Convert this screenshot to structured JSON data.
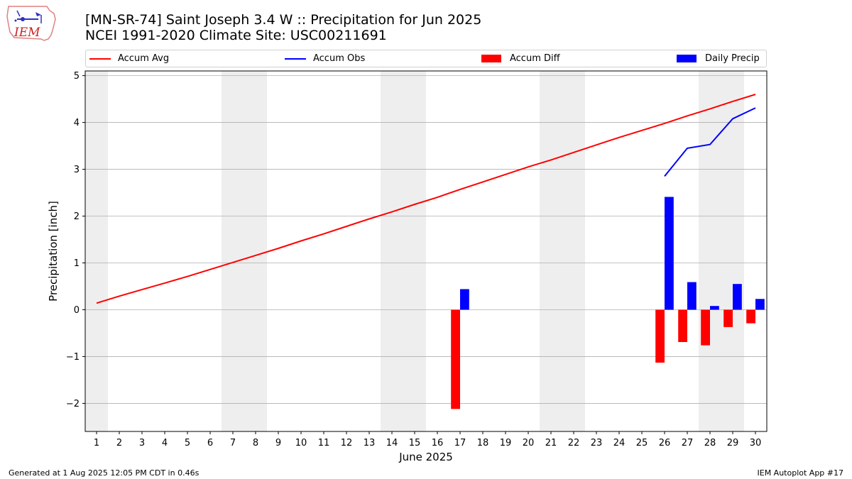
{
  "title_line1": "[MN-SR-74] Saint Joseph 3.4 W :: Precipitation for Jun 2025",
  "title_line2": "NCEI 1991-2020 Climate Site: USC00211691",
  "logo_text": "IEM",
  "footer_left": "Generated at 1 Aug 2025 12:05 PM CDT in 0.46s",
  "footer_right": "IEM Autoplot App #17",
  "colors": {
    "avg": "#ff0000",
    "obs": "#0000ff",
    "diff": "#ff0000",
    "daily": "#0000ff",
    "weekend": "#eeeeee",
    "grid": "#b0b0b0"
  },
  "chart_data": {
    "type": "bar+line",
    "xlabel": "June 2025",
    "ylabel": "Precipitation [inch]",
    "xlim": [
      0.5,
      30.5
    ],
    "ylim": [
      -2.6,
      5.1
    ],
    "yticks": [
      -2,
      -1,
      0,
      1,
      2,
      3,
      4,
      5
    ],
    "ytick_labels": [
      "−2",
      "−1",
      "0",
      "1",
      "2",
      "3",
      "4",
      "5"
    ],
    "x": [
      1,
      2,
      3,
      4,
      5,
      6,
      7,
      8,
      9,
      10,
      11,
      12,
      13,
      14,
      15,
      16,
      17,
      18,
      19,
      20,
      21,
      22,
      23,
      24,
      25,
      26,
      27,
      28,
      29,
      30
    ],
    "weekend_days": [
      1,
      7,
      8,
      14,
      15,
      21,
      22,
      28,
      29
    ],
    "grid": "horizontal",
    "legend_position": "top",
    "series": [
      {
        "name": "Accum Avg",
        "kind": "line",
        "values": [
          0.14,
          0.29,
          0.43,
          0.57,
          0.71,
          0.86,
          1.01,
          1.16,
          1.31,
          1.47,
          1.62,
          1.78,
          1.94,
          2.09,
          2.25,
          2.4,
          2.57,
          2.73,
          2.89,
          3.05,
          3.2,
          3.36,
          3.52,
          3.68,
          3.83,
          3.98,
          4.14,
          4.29,
          4.45,
          4.6
        ]
      },
      {
        "name": "Accum Obs",
        "kind": "line",
        "values": [
          null,
          null,
          null,
          null,
          null,
          null,
          null,
          null,
          null,
          null,
          null,
          null,
          null,
          null,
          null,
          null,
          null,
          null,
          null,
          null,
          null,
          null,
          null,
          null,
          null,
          2.85,
          3.45,
          3.53,
          4.08,
          4.31
        ]
      },
      {
        "name": "Accum Diff",
        "kind": "bar",
        "values": [
          null,
          null,
          null,
          null,
          null,
          null,
          null,
          null,
          null,
          null,
          null,
          null,
          null,
          null,
          null,
          null,
          -2.12,
          null,
          null,
          null,
          null,
          null,
          null,
          null,
          null,
          -1.13,
          -0.69,
          -0.76,
          -0.37,
          -0.29
        ]
      },
      {
        "name": "Daily Precip",
        "kind": "bar",
        "values": [
          null,
          null,
          null,
          null,
          null,
          null,
          null,
          null,
          null,
          null,
          null,
          null,
          null,
          null,
          null,
          null,
          0.44,
          null,
          null,
          null,
          null,
          null,
          null,
          null,
          null,
          2.41,
          0.59,
          0.08,
          0.55,
          0.23
        ]
      }
    ]
  }
}
